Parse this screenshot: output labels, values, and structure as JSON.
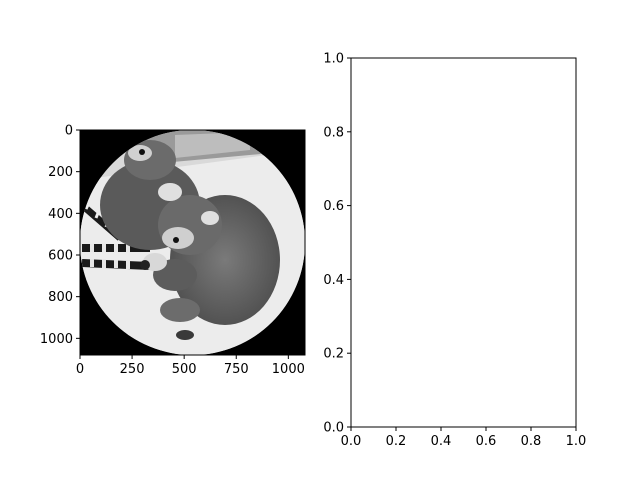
{
  "chart_data": [
    {
      "type": "image",
      "image": {
        "description": "grayscale photograph of two ring-tailed lemurs huddled together, masked to a circle on black background",
        "extent": {
          "x": [
            0,
            1080
          ],
          "y": [
            1080,
            0
          ]
        },
        "mask": "circle",
        "colormap": "gray"
      },
      "xlim": [
        0,
        1080
      ],
      "ylim": [
        1080,
        0
      ],
      "xticks": [
        0,
        250,
        500,
        750,
        1000
      ],
      "yticks": [
        0,
        200,
        400,
        600,
        800,
        1000
      ],
      "xtick_labels": [
        "0",
        "250",
        "500",
        "750",
        "1000"
      ],
      "ytick_labels": [
        "0",
        "200",
        "400",
        "600",
        "800",
        "1000"
      ],
      "title": "",
      "xlabel": "",
      "ylabel": "",
      "grid": false
    },
    {
      "type": "empty",
      "xlim": [
        0,
        1
      ],
      "ylim": [
        0,
        1
      ],
      "xticks": [
        0.0,
        0.2,
        0.4,
        0.6,
        0.8,
        1.0
      ],
      "yticks": [
        0.0,
        0.2,
        0.4,
        0.6,
        0.8,
        1.0
      ],
      "xtick_labels": [
        "0.0",
        "0.2",
        "0.4",
        "0.6",
        "0.8",
        "1.0"
      ],
      "ytick_labels": [
        "0.0",
        "0.2",
        "0.4",
        "0.6",
        "0.8",
        "1.0"
      ],
      "title": "",
      "xlabel": "",
      "ylabel": "",
      "grid": false
    }
  ],
  "colors": {
    "background": "#ffffff",
    "axes": "#000000",
    "image_outside": "#000000"
  }
}
